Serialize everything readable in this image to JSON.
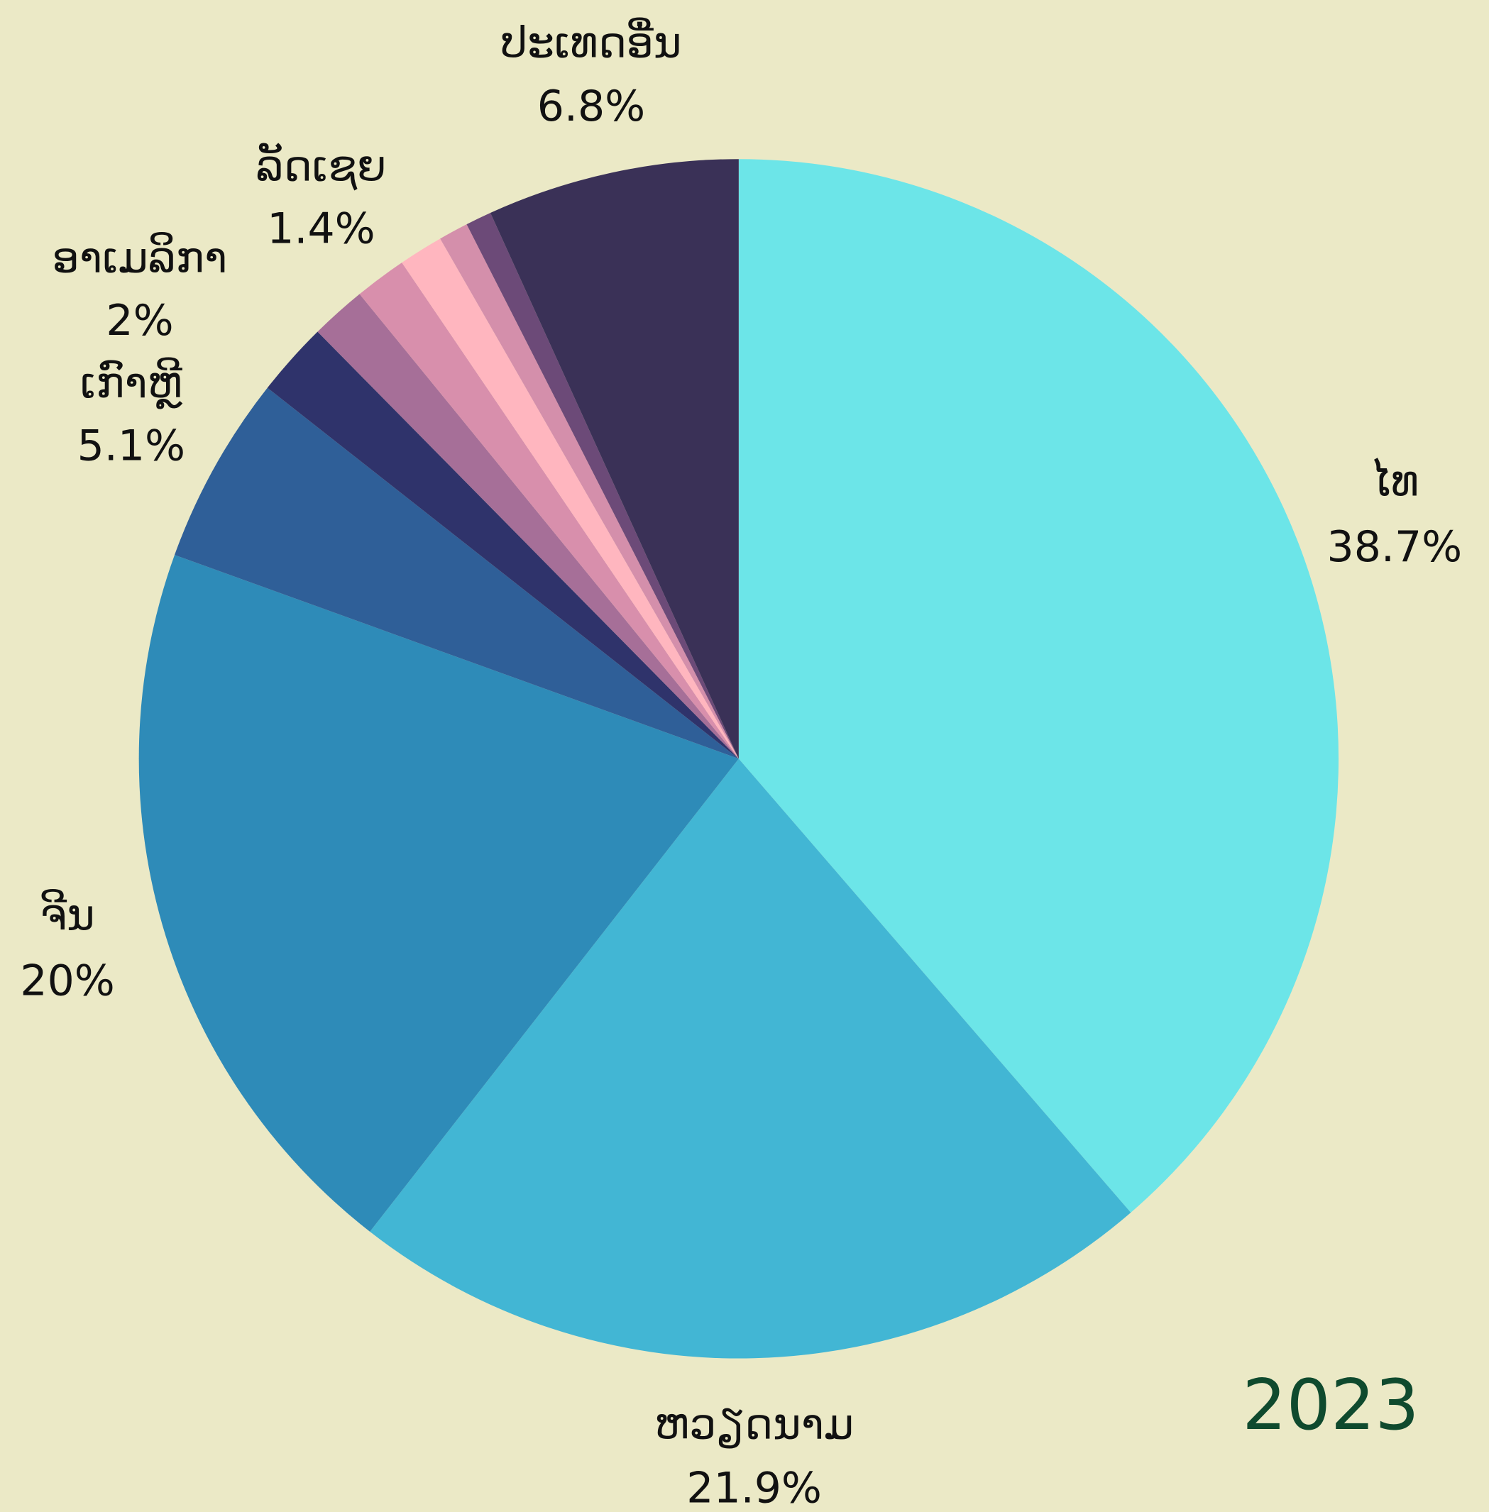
{
  "chart_data": {
    "type": "pie",
    "title": "2023",
    "categories": [
      "ໄທ",
      "ຫວຽດນາມ",
      "ຈີນ",
      "ເກົາຫຼີ",
      "ອາເມລິກາ",
      null,
      "ລັດເຊຍ",
      null,
      null,
      null,
      "ປະເທດອື່ນ"
    ],
    "values": [
      38.7,
      21.9,
      20,
      5.1,
      2,
      1.5,
      1.4,
      1.2,
      0.8,
      0.7,
      6.8
    ],
    "value_labels": [
      "38.7%",
      "21.9%",
      "20%",
      "5.1%",
      "2%",
      null,
      "1.4%",
      null,
      null,
      null,
      "6.8%"
    ],
    "colors": [
      "#6ce5e8",
      "#42b6d4",
      "#2e8bb8",
      "#2f5f98",
      "#2f336b",
      "#a66f98",
      "#d88fac",
      "#ffb6bf",
      "#d48fab",
      "#6c4a78",
      "#3a3157"
    ]
  }
}
